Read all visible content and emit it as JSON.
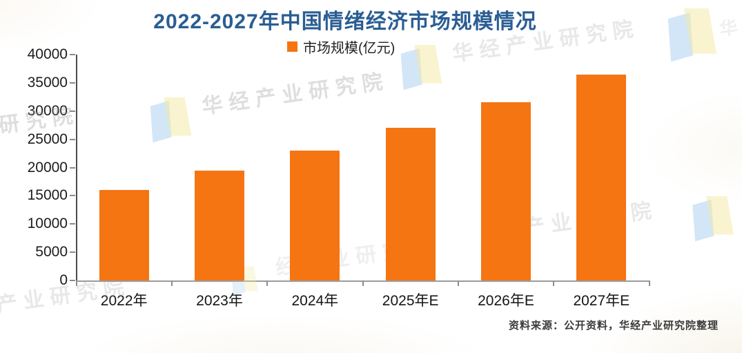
{
  "title": "2022-2027年中国情绪经济市场规模情况",
  "legend": {
    "label": "市场规模(亿元)",
    "color": "#f57513"
  },
  "source_note": "资料来源：公开资料，华经产业研究院整理",
  "watermark": {
    "full": "华经产业研究院",
    "partial_right": "产业研究院",
    "partial_bottom": "经产业研究院",
    "partial_corner": "华经"
  },
  "colors": {
    "bar": "#f57513",
    "title": "#2a5d93",
    "axis": "#4a4a4a"
  },
  "chart_data": {
    "type": "bar",
    "title": "2022-2027年中国情绪经济市场规模情况",
    "categories": [
      "2022年",
      "2023年",
      "2024年",
      "2025年E",
      "2026年E",
      "2027年E"
    ],
    "values": [
      16000,
      19400,
      23000,
      27000,
      31500,
      36400
    ],
    "series_name": "市场规模(亿元)",
    "unit": "亿元",
    "xlabel": "",
    "ylabel": "",
    "ylim": [
      0,
      40000
    ],
    "ytick_step": 5000,
    "yticks": [
      0,
      5000,
      10000,
      15000,
      20000,
      25000,
      30000,
      35000,
      40000
    ],
    "grid": false,
    "legend_position": "top",
    "bar_color": "#f57513"
  }
}
